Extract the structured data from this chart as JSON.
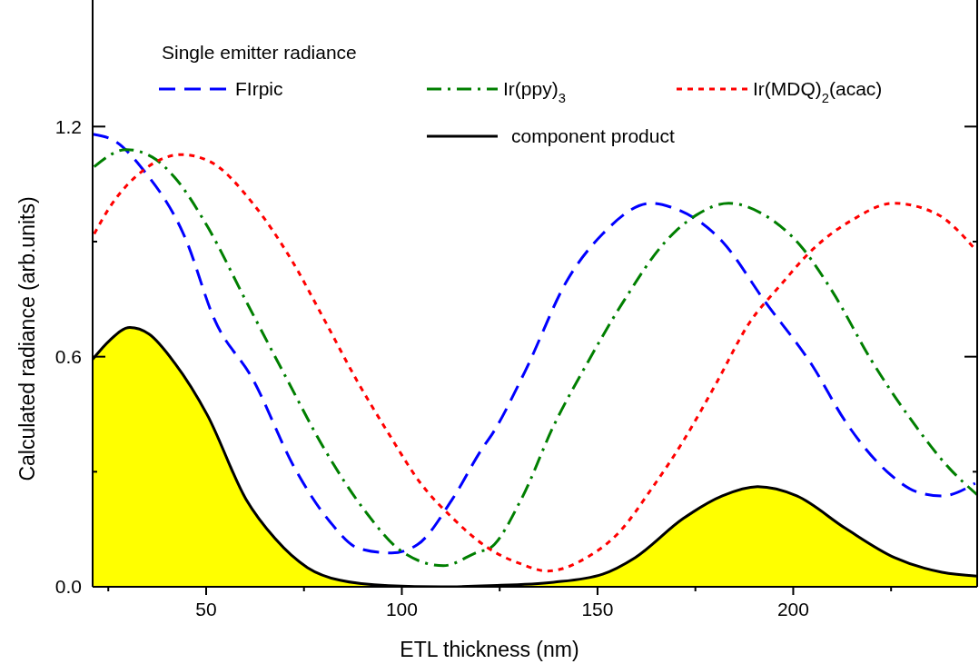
{
  "chart_data": {
    "type": "line",
    "xlabel": "ETL thickness (nm)",
    "ylabel": "Calculated radiance (arb.units)",
    "legend_title": "Single emitter radiance",
    "legend": "top",
    "xlim": [
      21,
      247
    ],
    "ylim": [
      0,
      1.53
    ],
    "xticks": [
      {
        "value": 25,
        "label": null
      },
      50,
      {
        "value": 75,
        "label": null
      },
      100,
      {
        "value": 125,
        "label": null
      },
      150,
      {
        "value": 175,
        "label": null
      },
      200,
      {
        "value": 225,
        "label": null
      }
    ],
    "yticks": [
      {
        "value": 0,
        "label": "0.0"
      },
      {
        "value": 0.3,
        "label": null
      },
      0.6,
      {
        "value": 0.9,
        "label": null
      },
      1.2
    ],
    "series": [
      {
        "name": "FIrpic",
        "color": "#0000ff",
        "line_style": "dashed",
        "x": [
          21,
          27,
          33.7,
          44.8,
          52,
          62,
          72.6,
          81.6,
          89,
          97.4,
          104,
          113,
          120.5,
          123.2,
          131.4,
          142.3,
          151.3,
          163.7,
          168.7,
          181.9,
          192.7,
          205,
          213.4,
          224,
          232.3,
          238,
          246.5
        ],
        "values": [
          1.18,
          1.16,
          1.09,
          0.906,
          0.7,
          0.54,
          0.31,
          0.17,
          0.1,
          0.088,
          0.11,
          0.23,
          0.36,
          0.4,
          0.56,
          0.8,
          0.92,
          1.0,
          0.99,
          0.9,
          0.745,
          0.575,
          0.43,
          0.3,
          0.245,
          0.237,
          0.27
        ]
      },
      {
        "name": "Ir(ppy)$_{3}$",
        "color": "#007f00",
        "line_style": "dashdot",
        "x": [
          21.4,
          29.6,
          36.3,
          42,
          50.3,
          60.2,
          70.2,
          80,
          90.8,
          100,
          110.6,
          119.8,
          122.4,
          130.6,
          138.8,
          147.2,
          157,
          167,
          175.2,
          183.5,
          192.7,
          201.8,
          210,
          220,
          229.8,
          239.8,
          247
        ],
        "values": [
          1.095,
          1.14,
          1.12,
          1.067,
          0.94,
          0.745,
          0.55,
          0.363,
          0.195,
          0.092,
          0.055,
          0.092,
          0.1,
          0.23,
          0.42,
          0.58,
          0.75,
          0.896,
          0.969,
          1.0,
          0.969,
          0.89,
          0.77,
          0.59,
          0.44,
          0.31,
          0.24
        ]
      },
      {
        "name": "Ir(MDQ)$_{2}$(acac)",
        "color": "#ff0000",
        "line_style": "dotted",
        "x": [
          21.4,
          25.4,
          33.7,
          43.7,
          51.1,
          61.9,
          71.7,
          80,
          88.4,
          96.6,
          104.8,
          113.1,
          122.2,
          130.6,
          137.2,
          147.2,
          155.5,
          163.7,
          171.9,
          180.3,
          188.6,
          196.8,
          205,
          215,
          225.6,
          236.5,
          246.5
        ],
        "values": [
          0.92,
          0.99,
          1.084,
          1.127,
          1.108,
          1.0,
          0.854,
          0.7,
          0.54,
          0.4,
          0.27,
          0.178,
          0.1,
          0.059,
          0.041,
          0.076,
          0.142,
          0.254,
          0.38,
          0.53,
          0.685,
          0.787,
          0.88,
          0.956,
          1.0,
          0.973,
          0.88
        ]
      },
      {
        "name": "component product",
        "type": "area",
        "color": "#000000",
        "line_style": "solid",
        "x": [
          21,
          25.4,
          30.5,
          35.4,
          42,
          50.3,
          60.2,
          67.6,
          75.9,
          84.2,
          96.6,
          110,
          122.4,
          138.8,
          151.3,
          159.6,
          171.9,
          181.9,
          190.9,
          200.9,
          213.4,
          225.9,
          238,
          247
        ],
        "values": [
          0.593,
          0.643,
          0.676,
          0.659,
          0.583,
          0.448,
          0.228,
          0.126,
          0.05,
          0.017,
          0.003,
          0.0,
          0.003,
          0.012,
          0.033,
          0.076,
          0.178,
          0.237,
          0.261,
          0.237,
          0.152,
          0.076,
          0.038,
          0.028
        ]
      }
    ]
  }
}
